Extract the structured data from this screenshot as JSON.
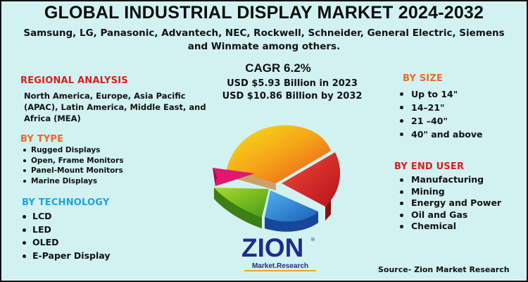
{
  "title": "GLOBAL INDUSTRIAL DISPLAY MARKET 2024-2032",
  "subtitle": "Samsung, LG, Panasonic, Advantech, NEC, Rockwell, Schneider, General Electric, Siemens and Winmate among others.",
  "stats": {
    "cagr": "CAGR 6.2%",
    "value_2023": "USD $5.93 Billion in 2023",
    "value_2032": "USD $10.86 Billion by 2032"
  },
  "regional": {
    "heading": "REGIONAL ANALYSIS",
    "body": "North America, Europe, Asia Pacific (APAC), Latin America, Middle East, and Africa (MEA)"
  },
  "by_type": {
    "heading": "BY TYPE",
    "items": [
      "Rugged Displays",
      "Open, Frame Monitors",
      "Panel-Mount Monitors",
      "Marine Displays"
    ]
  },
  "by_technology": {
    "heading": "BY TECHNOLOGY",
    "items": [
      "LCD",
      "LED",
      "OLED",
      "E-Paper Display"
    ]
  },
  "by_size": {
    "heading": "BY SIZE",
    "items": [
      "Up to 14\"",
      "14–21\"",
      "21 –40\"",
      "40\" and above"
    ]
  },
  "by_end_user": {
    "heading": "BY END USER",
    "items": [
      "Manufacturing",
      "Mining",
      "Energy and Power",
      "Oil and Gas",
      "Chemical"
    ]
  },
  "logo": {
    "name": "ZION",
    "registered": "®",
    "tagline": "Market.Research"
  },
  "source": "Source- Zion Market Research",
  "colors": {
    "background": "#d2f2f2",
    "heading_red": "#e11b1b",
    "heading_blue": "#1aa3e8",
    "heading_orange": "#f06a1e",
    "logo_blue": "#1e2c8a",
    "logo_orange": "#f2a41b"
  }
}
